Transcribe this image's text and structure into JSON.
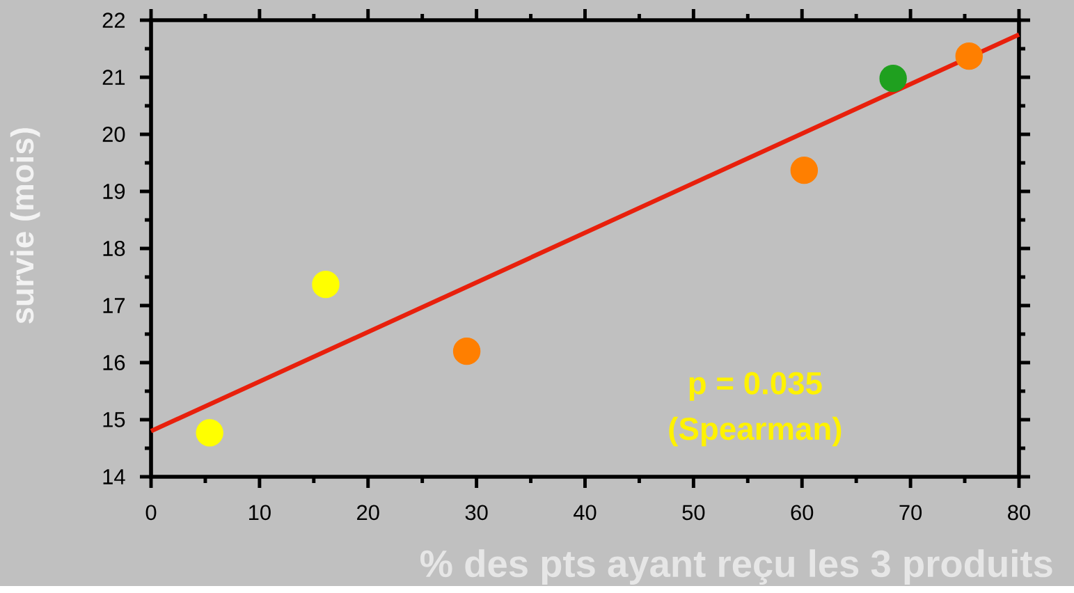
{
  "chart_data": {
    "type": "scatter",
    "xlabel": "% des pts ayant reçu les  3 produits",
    "ylabel": "survie (mois)",
    "xlim": [
      0,
      80
    ],
    "ylim": [
      14,
      22
    ],
    "xticks": [
      0,
      10,
      20,
      30,
      40,
      50,
      60,
      70,
      80
    ],
    "yticks": [
      14,
      15,
      16,
      17,
      18,
      19,
      20,
      21,
      22
    ],
    "legend": false,
    "annotations": [
      "p = 0.035",
      "(Spearman)"
    ],
    "series": [
      {
        "type": "line",
        "color": "#e8200c",
        "marker": "none",
        "x": [
          0,
          80
        ],
        "values": [
          14.8,
          21.75
        ]
      },
      {
        "marker": "circle",
        "colors": [
          "#ffff00",
          "#ffff00",
          "#ff7f00",
          "#ff7f00",
          "#1fa01f",
          "#ff7f00"
        ],
        "x": [
          5.4,
          16.1,
          29.1,
          60.2,
          68.4,
          75.4
        ],
        "values": [
          14.77,
          17.37,
          16.2,
          19.37,
          20.98,
          21.37
        ]
      }
    ]
  }
}
